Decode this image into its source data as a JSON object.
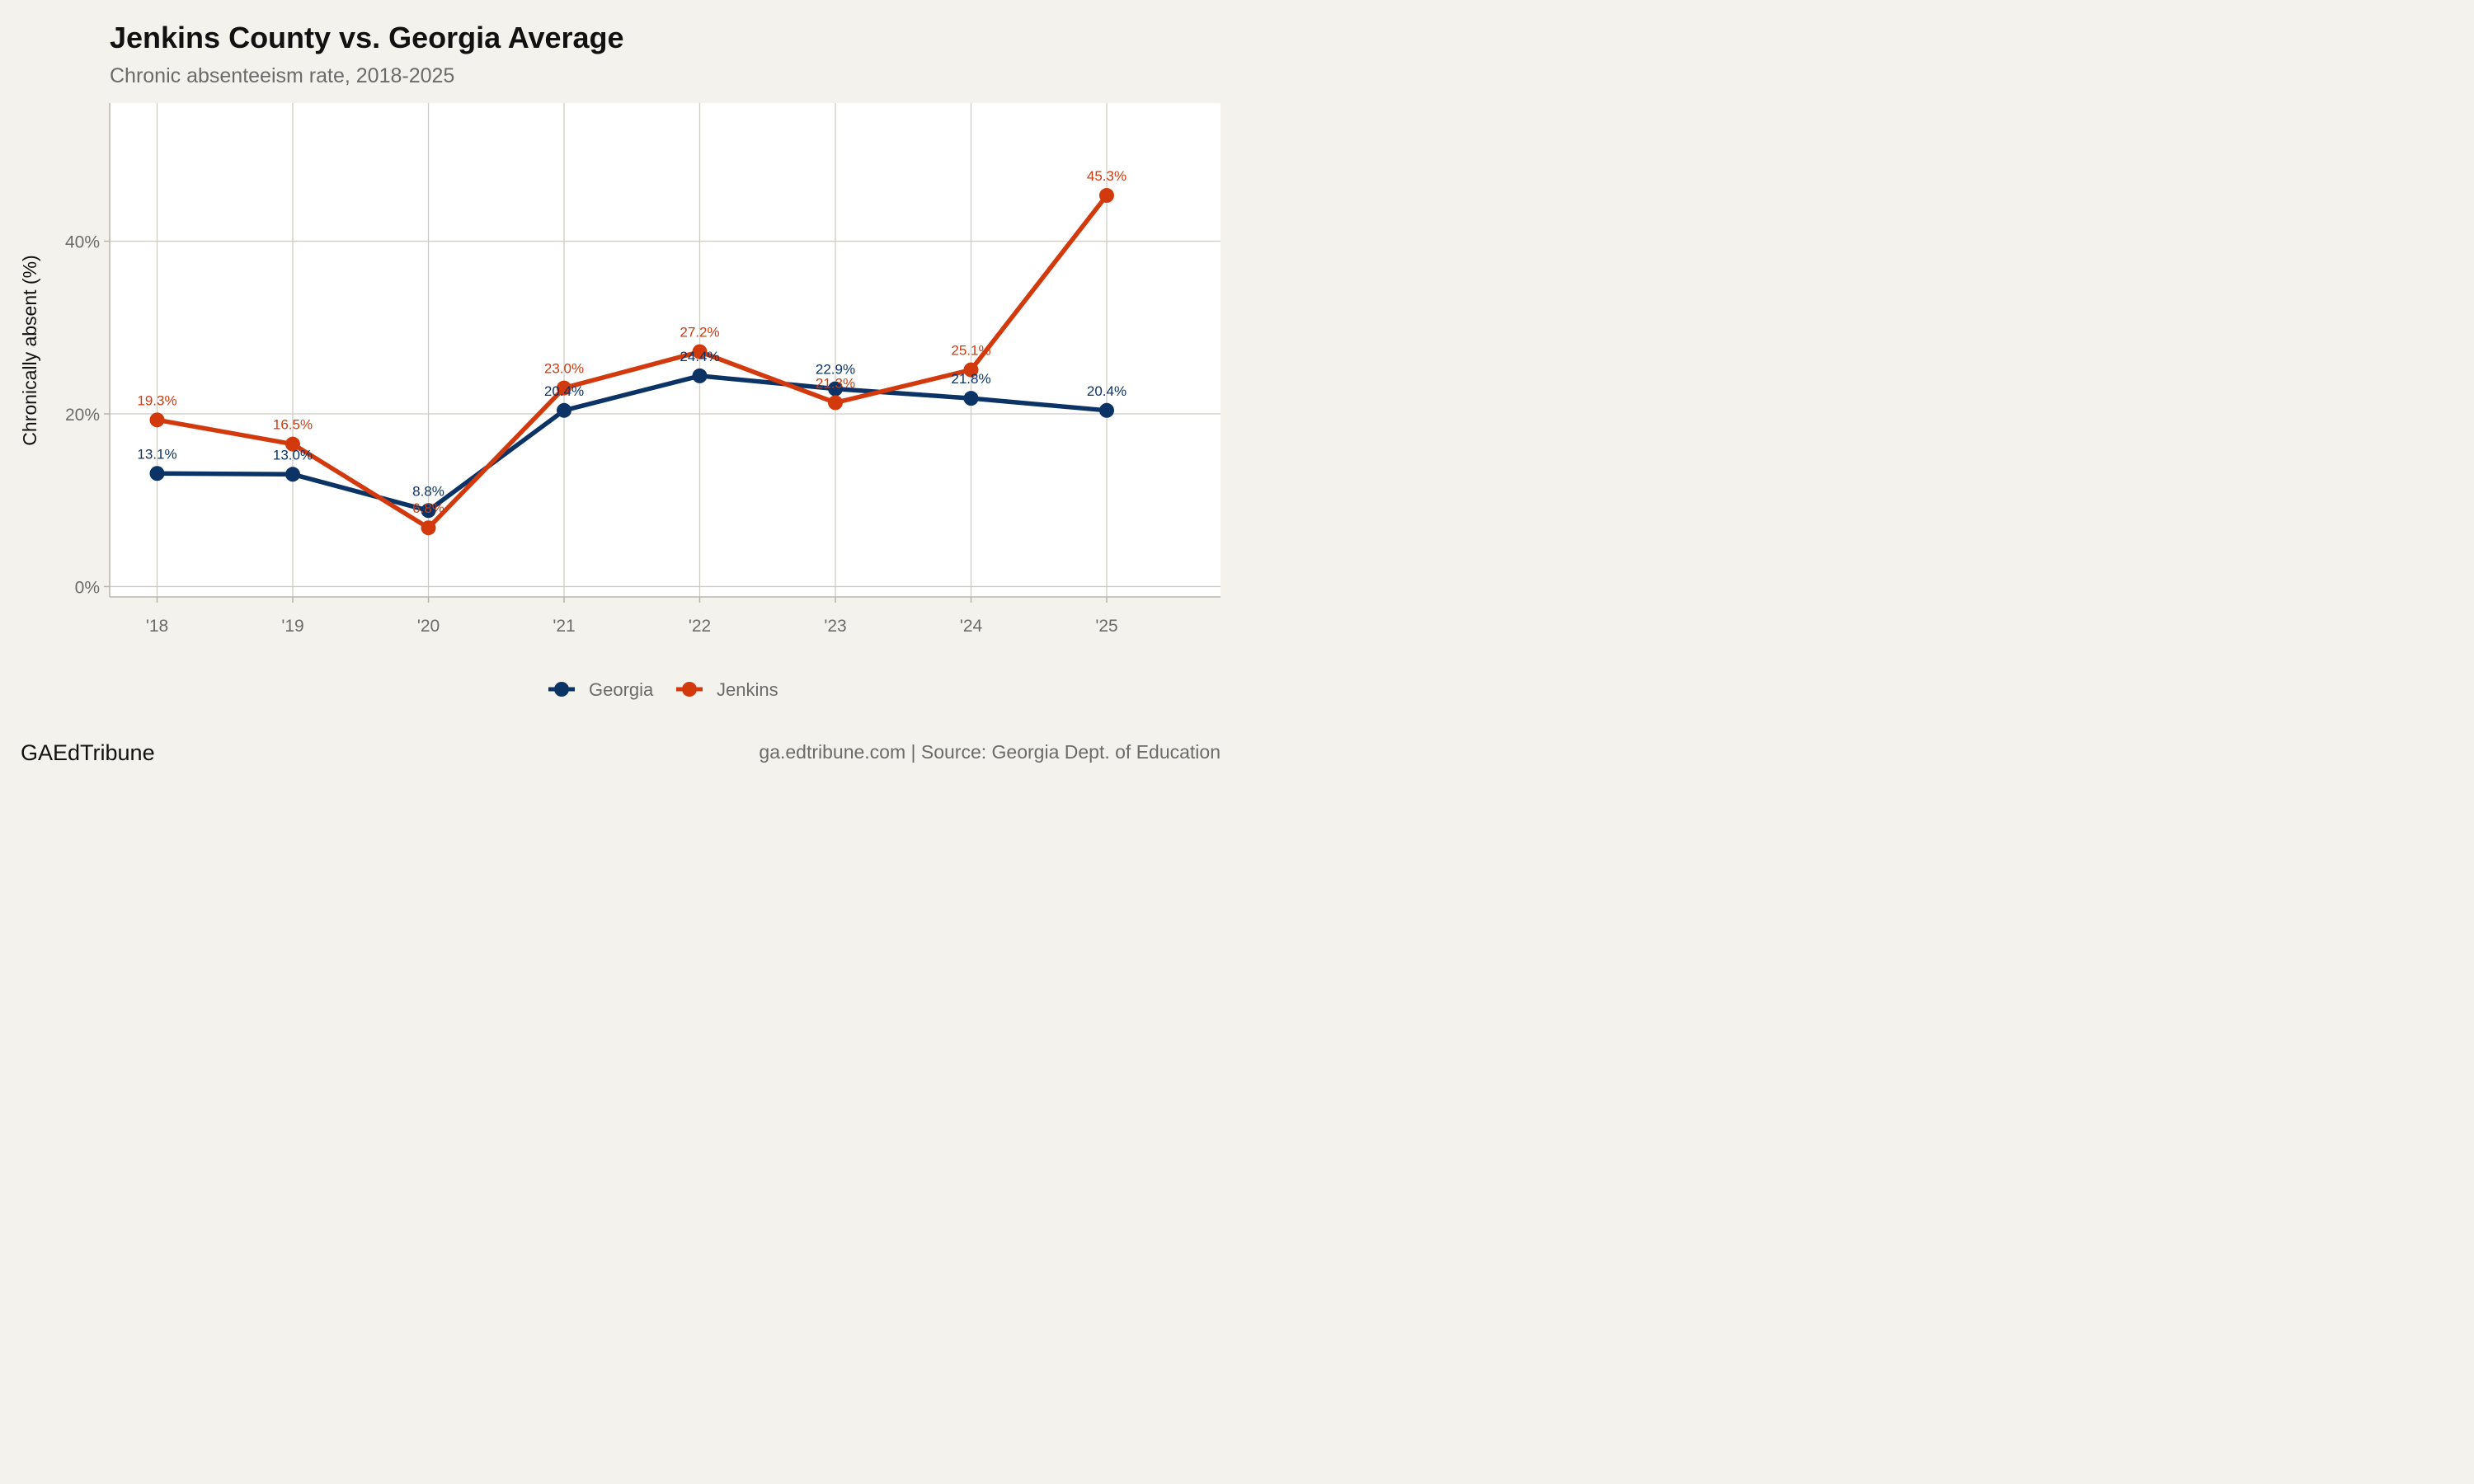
{
  "chart_data": {
    "type": "line",
    "title": "Jenkins County vs. Georgia Average",
    "subtitle": "Chronic absenteeism rate, 2018-2025",
    "ylabel": "Chronically absent (%)",
    "xlabel": "",
    "categories": [
      "'18",
      "'19",
      "'20",
      "'21",
      "'22",
      "'23",
      "'24",
      "'25"
    ],
    "ylim": [
      -1.2,
      56
    ],
    "yticks": [
      0,
      20,
      40
    ],
    "ytick_labels": [
      "0%",
      "20%",
      "40%"
    ],
    "grid": true,
    "legend_position": "bottom",
    "series": [
      {
        "name": "Georgia",
        "color": "#0b3366",
        "values": [
          13.1,
          13.0,
          8.8,
          20.4,
          24.4,
          22.9,
          21.8,
          20.4
        ],
        "labels": [
          "13.1%",
          "13.0%",
          "8.8%",
          "20.4%",
          "24.4%",
          "22.9%",
          "21.8%",
          "20.4%"
        ]
      },
      {
        "name": "Jenkins",
        "color": "#d23a0e",
        "values": [
          19.3,
          16.5,
          6.8,
          23.0,
          27.2,
          21.3,
          25.1,
          45.3
        ],
        "labels": [
          "19.3%",
          "16.5%",
          "6.8%",
          "23.0%",
          "27.2%",
          "21.3%",
          "25.1%",
          "45.3%"
        ]
      }
    ]
  },
  "footer": {
    "brand": "GAEdTribune",
    "source": "ga.edtribune.com | Source: Georgia Dept. of Education"
  }
}
